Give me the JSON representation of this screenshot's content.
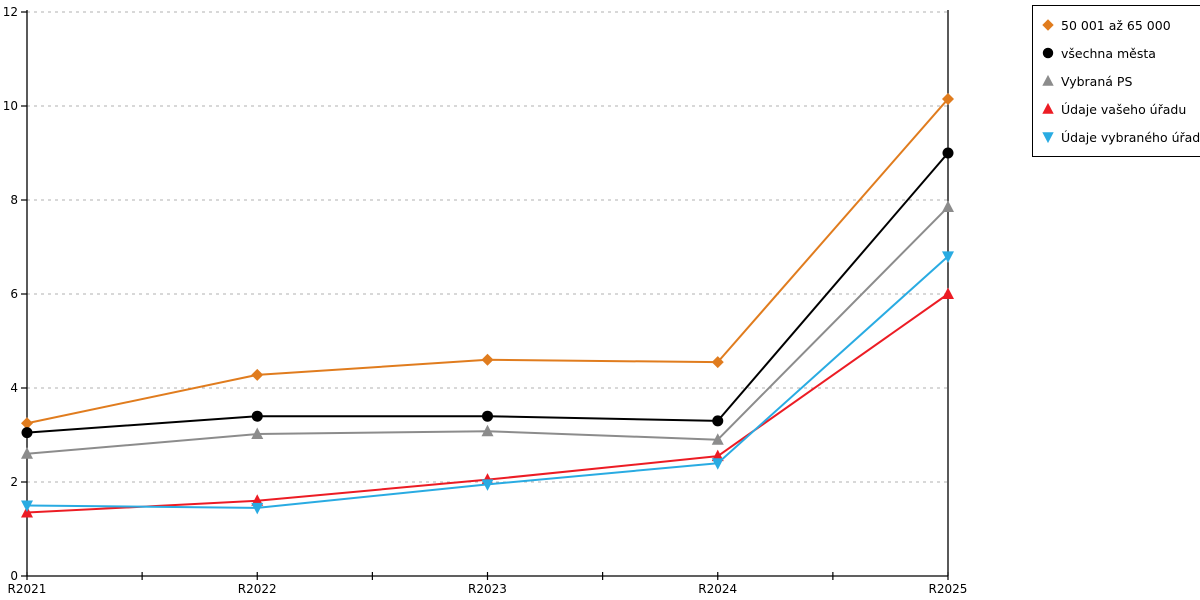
{
  "chart_data": {
    "type": "line",
    "title": "",
    "xlabel": "",
    "ylabel": "",
    "categories": [
      "R2021",
      "R2022",
      "R2023",
      "R2024",
      "R2025"
    ],
    "y_axis": {
      "min": 0,
      "max": 12,
      "tick_step": 2,
      "tick_labels": [
        "0",
        "2",
        "4",
        "6",
        "8",
        "10",
        "12"
      ]
    },
    "grid": "horizontal-dashed",
    "grid_color": "#b0b0b0",
    "axis_color": "#000000",
    "legend_position": "top-right",
    "legend_border_color": "#000000",
    "x_minor_ticks_between_categories": true,
    "series": [
      {
        "name": "50 001 až 65 000",
        "marker": "diamond",
        "color": "#E07C1E",
        "values": [
          3.25,
          4.28,
          4.6,
          4.55,
          10.15
        ]
      },
      {
        "name": "všechna města",
        "marker": "circle",
        "color": "#000000",
        "values": [
          3.05,
          3.4,
          3.4,
          3.3,
          9.0
        ]
      },
      {
        "name": "Vybraná PS",
        "marker": "triangle-up",
        "color": "#8C8C8C",
        "values": [
          2.6,
          3.02,
          3.08,
          2.9,
          7.85
        ]
      },
      {
        "name": "Údaje vašeho úřadu",
        "marker": "triangle-up",
        "color": "#EC1C24",
        "values": [
          1.35,
          1.6,
          2.05,
          2.55,
          6.0
        ]
      },
      {
        "name": "Údaje vybraného úřadu",
        "marker": "triangle-down",
        "color": "#29ABE2",
        "values": [
          1.5,
          1.45,
          1.95,
          2.4,
          6.8
        ]
      }
    ]
  }
}
